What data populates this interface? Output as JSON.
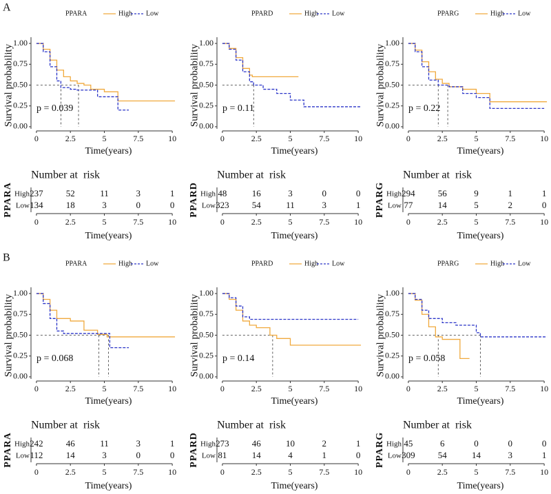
{
  "panel_labels": [
    "A",
    "B"
  ],
  "chart_data": [
    {
      "type": "km",
      "legend_title": "PPARA",
      "annotation": "p = 0.039",
      "ylabel": "Survival probability",
      "xlabel": "Time(years)",
      "xlim": [
        -0.4,
        10.4
      ],
      "ylim": [
        -0.05,
        1.05
      ],
      "xticks": [
        0,
        2.5,
        5,
        7.5,
        10
      ],
      "yticks": [
        {
          "value": 0,
          "label": "0.00"
        },
        {
          "value": 0.25,
          "label": "0.25"
        },
        {
          "value": 0.5,
          "label": "0.50"
        },
        {
          "value": 0.75,
          "label": "0.75"
        },
        {
          "value": 1,
          "label": "1.00"
        }
      ],
      "series": [
        {
          "name": "High",
          "color": "#f0a93c",
          "linestyle": "solid",
          "x": [
            0,
            0.5,
            1,
            1.5,
            2,
            2.5,
            3,
            3.5,
            4,
            5,
            6,
            10.2
          ],
          "values": [
            1,
            0.93,
            0.8,
            0.68,
            0.6,
            0.55,
            0.52,
            0.5,
            0.45,
            0.42,
            0.31,
            0.31
          ]
        },
        {
          "name": "Low",
          "color": "#2a34c8",
          "linestyle": "dashed",
          "x": [
            0,
            0.5,
            1,
            1.5,
            1.8,
            2.5,
            3,
            4.5,
            6,
            6.8
          ],
          "values": [
            1,
            0.9,
            0.72,
            0.55,
            0.47,
            0.45,
            0.44,
            0.36,
            0.2,
            0.2
          ]
        }
      ],
      "medians": [
        1.8,
        3.1
      ],
      "risk_title": "Number at  risk",
      "risk_ylabel": "PPARA",
      "risk": [
        [
          237,
          52,
          11,
          3,
          1
        ],
        [
          134,
          18,
          3,
          0,
          0
        ]
      ]
    },
    {
      "type": "km",
      "legend_title": "PPARD",
      "annotation": "p = 0.11",
      "ylabel": "Survival probability",
      "xlabel": "Time(years)",
      "xlim": [
        -0.4,
        10.4
      ],
      "ylim": [
        -0.05,
        1.05
      ],
      "xticks": [
        0,
        2.5,
        5,
        7.5,
        10
      ],
      "yticks": [
        {
          "value": 0,
          "label": "0.00"
        },
        {
          "value": 0.25,
          "label": "0.25"
        },
        {
          "value": 0.5,
          "label": "0.50"
        },
        {
          "value": 0.75,
          "label": "0.75"
        },
        {
          "value": 1,
          "label": "1.00"
        }
      ],
      "series": [
        {
          "name": "High",
          "color": "#f0a93c",
          "linestyle": "solid",
          "x": [
            0,
            0.5,
            1,
            1.5,
            2,
            2.2,
            2.5,
            5.6
          ],
          "values": [
            1,
            0.94,
            0.83,
            0.7,
            0.62,
            0.6,
            0.6,
            0.6
          ]
        },
        {
          "name": "Low",
          "color": "#2a34c8",
          "linestyle": "dashed",
          "x": [
            0,
            0.5,
            1,
            1.5,
            2,
            2.3,
            3,
            4,
            5,
            6,
            10.2
          ],
          "values": [
            1,
            0.93,
            0.8,
            0.66,
            0.54,
            0.5,
            0.45,
            0.4,
            0.32,
            0.24,
            0.24
          ]
        }
      ],
      "medians": [
        2.3
      ],
      "risk_title": "Number at  risk",
      "risk_ylabel": "PPARD",
      "risk": [
        [
          48,
          16,
          3,
          0,
          0
        ],
        [
          323,
          54,
          11,
          3,
          1
        ]
      ]
    },
    {
      "type": "km",
      "legend_title": "PPARG",
      "annotation": "p = 0.22",
      "ylabel": "Survival probability",
      "xlabel": "Time(years)",
      "xlim": [
        -0.4,
        10.4
      ],
      "ylim": [
        -0.05,
        1.05
      ],
      "xticks": [
        0,
        2.5,
        5,
        7.5,
        10
      ],
      "yticks": [
        {
          "value": 0,
          "label": "0.00"
        },
        {
          "value": 0.25,
          "label": "0.25"
        },
        {
          "value": 0.5,
          "label": "0.50"
        },
        {
          "value": 0.75,
          "label": "0.75"
        },
        {
          "value": 1,
          "label": "1.00"
        }
      ],
      "series": [
        {
          "name": "High",
          "color": "#f0a93c",
          "linestyle": "solid",
          "x": [
            0,
            0.5,
            1,
            1.5,
            2,
            2.5,
            3,
            4,
            5,
            6,
            10.2
          ],
          "values": [
            1,
            0.92,
            0.78,
            0.66,
            0.57,
            0.52,
            0.48,
            0.45,
            0.4,
            0.3,
            0.3
          ]
        },
        {
          "name": "Low",
          "color": "#2a34c8",
          "linestyle": "dashed",
          "x": [
            0,
            0.5,
            1,
            1.5,
            2.2,
            3,
            4,
            5,
            6,
            10
          ],
          "values": [
            1,
            0.9,
            0.72,
            0.56,
            0.5,
            0.48,
            0.4,
            0.35,
            0.22,
            0.22
          ]
        }
      ],
      "medians": [
        2.2,
        2.9
      ],
      "risk_title": "Number at  risk",
      "risk_ylabel": "PPARG",
      "risk": [
        [
          294,
          56,
          9,
          1,
          1
        ],
        [
          77,
          14,
          5,
          2,
          0
        ]
      ]
    },
    {
      "type": "km",
      "legend_title": "PPARA",
      "annotation": "p = 0.068",
      "ylabel": "Survival probability",
      "xlabel": "Time(years)",
      "xlim": [
        -0.4,
        10.4
      ],
      "ylim": [
        -0.05,
        1.05
      ],
      "xticks": [
        0,
        2.5,
        5,
        7.5,
        10
      ],
      "yticks": [
        {
          "value": 0,
          "label": "0.00"
        },
        {
          "value": 0.25,
          "label": "0.25"
        },
        {
          "value": 0.5,
          "label": "0.50"
        },
        {
          "value": 0.75,
          "label": "0.75"
        },
        {
          "value": 1,
          "label": "1.00"
        }
      ],
      "series": [
        {
          "name": "High",
          "color": "#f0a93c",
          "linestyle": "solid",
          "x": [
            0,
            0.5,
            1,
            1.5,
            2.5,
            3.5,
            4.5,
            5.2,
            10.2
          ],
          "values": [
            1,
            0.93,
            0.8,
            0.7,
            0.67,
            0.56,
            0.51,
            0.48,
            0.48
          ]
        },
        {
          "name": "Low",
          "color": "#2a34c8",
          "linestyle": "dashed",
          "x": [
            0,
            0.5,
            1,
            1.5,
            2,
            4.5,
            5.4,
            6.8
          ],
          "values": [
            1,
            0.88,
            0.7,
            0.55,
            0.52,
            0.52,
            0.35,
            0.35
          ]
        }
      ],
      "medians": [
        4.6,
        5.3
      ],
      "risk_title": "Number at  risk",
      "risk_ylabel": "PPARA",
      "risk": [
        [
          242,
          46,
          11,
          3,
          1
        ],
        [
          112,
          14,
          3,
          0,
          0
        ]
      ]
    },
    {
      "type": "km",
      "legend_title": "PPARD",
      "annotation": "p = 0.14",
      "ylabel": "Survival probability",
      "xlabel": "Time(years)",
      "xlim": [
        -0.4,
        10.4
      ],
      "ylim": [
        -0.05,
        1.05
      ],
      "xticks": [
        0,
        2.5,
        5,
        7.5,
        10
      ],
      "yticks": [
        {
          "value": 0,
          "label": "0.00"
        },
        {
          "value": 0.25,
          "label": "0.25"
        },
        {
          "value": 0.5,
          "label": "0.50"
        },
        {
          "value": 0.75,
          "label": "0.75"
        },
        {
          "value": 1,
          "label": "1.00"
        }
      ],
      "series": [
        {
          "name": "High",
          "color": "#f0a93c",
          "linestyle": "solid",
          "x": [
            0,
            0.5,
            1,
            1.5,
            2,
            2.5,
            3.5,
            4,
            5,
            10.2
          ],
          "values": [
            1,
            0.93,
            0.8,
            0.67,
            0.62,
            0.59,
            0.5,
            0.46,
            0.38,
            0.38
          ]
        },
        {
          "name": "Low",
          "color": "#2a34c8",
          "linestyle": "dashed",
          "x": [
            0,
            0.5,
            1,
            1.5,
            2,
            10
          ],
          "values": [
            1,
            0.95,
            0.85,
            0.72,
            0.69,
            0.69
          ]
        }
      ],
      "medians": [
        3.7
      ],
      "risk_title": "Number at  risk",
      "risk_ylabel": "PPARD",
      "risk": [
        [
          273,
          46,
          10,
          2,
          1
        ],
        [
          81,
          14,
          4,
          1,
          0
        ]
      ]
    },
    {
      "type": "km",
      "legend_title": "PPARG",
      "annotation": "p = 0.058",
      "ylabel": "Survival probability",
      "xlabel": "Time(years)",
      "xlim": [
        -0.4,
        10.4
      ],
      "ylim": [
        -0.05,
        1.05
      ],
      "xticks": [
        0,
        2.5,
        5,
        7.5,
        10
      ],
      "yticks": [
        {
          "value": 0,
          "label": "0.00"
        },
        {
          "value": 0.25,
          "label": "0.25"
        },
        {
          "value": 0.5,
          "label": "0.50"
        },
        {
          "value": 0.75,
          "label": "0.75"
        },
        {
          "value": 1,
          "label": "1.00"
        }
      ],
      "series": [
        {
          "name": "High",
          "color": "#f0a93c",
          "linestyle": "solid",
          "x": [
            0,
            0.5,
            1,
            1.5,
            2,
            2.5,
            3.5,
            3.8,
            4.5
          ],
          "values": [
            1,
            0.92,
            0.75,
            0.6,
            0.48,
            0.45,
            0.45,
            0.22,
            0.22
          ]
        },
        {
          "name": "Low",
          "color": "#2a34c8",
          "linestyle": "dashed",
          "x": [
            0,
            0.5,
            1,
            1.5,
            2.5,
            3.5,
            5,
            5.3,
            10.2
          ],
          "values": [
            1,
            0.93,
            0.8,
            0.7,
            0.65,
            0.62,
            0.53,
            0.48,
            0.48
          ]
        }
      ],
      "medians": [
        2.2,
        5.3
      ],
      "risk_title": "Number at  risk",
      "risk_ylabel": "PPARG",
      "risk": [
        [
          45,
          6,
          0,
          0,
          0
        ],
        [
          309,
          54,
          14,
          3,
          1
        ]
      ]
    }
  ]
}
